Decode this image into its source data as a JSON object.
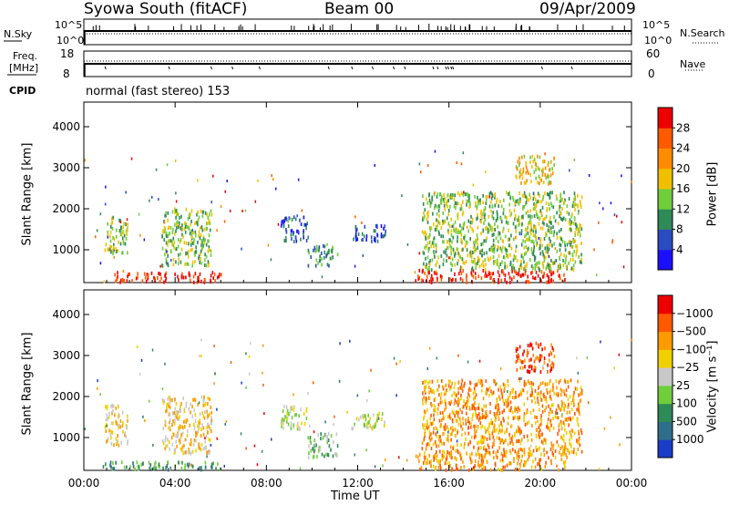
{
  "header": {
    "station": "Syowa South (fitACF)",
    "beam": "Beam 00",
    "date": "09/Apr/2009"
  },
  "panels": {
    "nsky_label": "N.Sky",
    "nsky_ticks": [
      "10^5",
      "10^0"
    ],
    "nsearch_label": "N.Search",
    "nsearch_ticks": [
      "10^5",
      "10^0"
    ],
    "freq_label_1": "Freq.",
    "freq_label_2": "[MHz]",
    "freq_ticks": [
      "18",
      "8"
    ],
    "nave_label": "Nave",
    "nave_ticks": [
      "60",
      "0"
    ],
    "cpid_label": "CPID",
    "cpid_value": "normal (fast stereo) 153"
  },
  "chart_data": [
    {
      "type": "heatmap",
      "name": "power",
      "ylabel": "Slant Range [km]",
      "yticks": [
        "1000",
        "2000",
        "3000",
        "4000"
      ],
      "ylim": [
        200,
        4600
      ],
      "xlim": [
        0,
        24
      ],
      "colorbar_label": "Power [dB]",
      "colorbar_ticks": [
        "4",
        "8",
        "12",
        "16",
        "20",
        "24",
        "28"
      ],
      "colorbar_colors": [
        "#1a10ff",
        "#2a4cc0",
        "#2e8a57",
        "#6fce3a",
        "#f0c000",
        "#ff8c00",
        "#ff5a00",
        "#ee0000"
      ],
      "regions": [
        {
          "t0": 0.9,
          "t1": 1.9,
          "r0": 900,
          "r1": 1800,
          "level": 3
        },
        {
          "t0": 1.3,
          "t1": 6.0,
          "r0": 200,
          "r1": 450,
          "level": 7
        },
        {
          "t0": 3.4,
          "t1": 5.6,
          "r0": 600,
          "r1": 2000,
          "level": 3
        },
        {
          "t0": 8.6,
          "t1": 9.8,
          "r0": 1200,
          "r1": 1800,
          "level": 1
        },
        {
          "t0": 9.8,
          "t1": 11.1,
          "r0": 600,
          "r1": 1100,
          "level": 2
        },
        {
          "t0": 11.7,
          "t1": 13.2,
          "r0": 1200,
          "r1": 1600,
          "level": 1
        },
        {
          "t0": 14.5,
          "t1": 21.2,
          "r0": 200,
          "r1": 500,
          "level": 7
        },
        {
          "t0": 14.8,
          "t1": 21.8,
          "r0": 500,
          "r1": 2400,
          "level": 3
        },
        {
          "t0": 18.9,
          "t1": 20.6,
          "r0": 2600,
          "r1": 3300,
          "level": 4
        }
      ]
    },
    {
      "type": "heatmap",
      "name": "velocity",
      "ylabel": "Slant Range [km]",
      "yticks": [
        "1000",
        "2000",
        "3000",
        "4000"
      ],
      "ylim": [
        200,
        4600
      ],
      "xlim": [
        0,
        24
      ],
      "xticks": [
        "00:00",
        "04:00",
        "08:00",
        "12:00",
        "16:00",
        "20:00",
        "00:00"
      ],
      "xlabel": "Time UT",
      "colorbar_label": "Velocity [m s⁻¹]",
      "colorbar_ticks": [
        "1000",
        "500",
        "100",
        "25",
        "−25",
        "−100",
        "−500",
        "−1000"
      ],
      "colorbar_colors": [
        "#1a3cc8",
        "#2e6e8a",
        "#2e8a57",
        "#6fce3a",
        "#c8c8c8",
        "#f0d000",
        "#ff9a00",
        "#ff5a00",
        "#ee0000"
      ],
      "regions": [
        {
          "t0": 0.9,
          "t1": 1.9,
          "r0": 800,
          "r1": 1800,
          "level": 5
        },
        {
          "t0": 0.8,
          "t1": 6.0,
          "r0": 200,
          "r1": 400,
          "level": 2
        },
        {
          "t0": 3.4,
          "t1": 5.6,
          "r0": 600,
          "r1": 2000,
          "level": 5
        },
        {
          "t0": 8.6,
          "t1": 9.8,
          "r0": 1200,
          "r1": 1800,
          "level": 4
        },
        {
          "t0": 9.8,
          "t1": 11.1,
          "r0": 500,
          "r1": 1100,
          "level": 3
        },
        {
          "t0": 11.7,
          "t1": 13.2,
          "r0": 1200,
          "r1": 1600,
          "level": 4
        },
        {
          "t0": 14.5,
          "t1": 21.2,
          "r0": 200,
          "r1": 600,
          "level": 6
        },
        {
          "t0": 14.8,
          "t1": 21.8,
          "r0": 600,
          "r1": 2400,
          "level": 6
        },
        {
          "t0": 18.9,
          "t1": 20.6,
          "r0": 2600,
          "r1": 3300,
          "level": 7
        }
      ]
    }
  ]
}
